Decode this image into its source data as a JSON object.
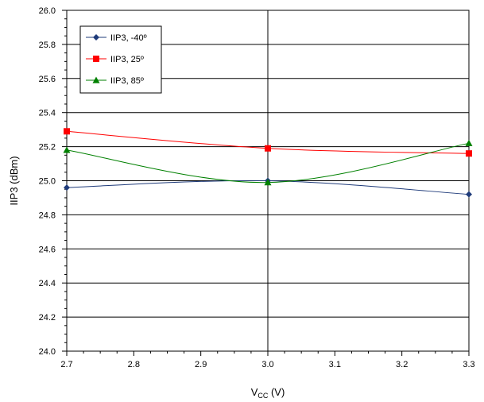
{
  "chart_data": {
    "type": "line",
    "xlabel_main": "V",
    "xlabel_sub": "CC",
    "xlabel_unit": " (V)",
    "ylabel": "IIP3 (dBm)",
    "x": [
      2.7,
      3.0,
      3.3
    ],
    "xlim": [
      2.7,
      3.3
    ],
    "ylim": [
      24.0,
      26.0
    ],
    "x_ticks": [
      "2.7",
      "2.8",
      "2.9",
      "3.0",
      "3.1",
      "3.2",
      "3.3"
    ],
    "y_ticks": [
      "24.0",
      "24.2",
      "24.4",
      "24.6",
      "24.8",
      "25.0",
      "25.2",
      "25.4",
      "25.6",
      "25.8",
      "26.0"
    ],
    "grid": true,
    "smooth": true,
    "legend_position": "top-left",
    "series": [
      {
        "name": "IIP3, -40º",
        "values": [
          24.96,
          25.0,
          24.92
        ],
        "color": "#1f3b7a",
        "marker": "diamond"
      },
      {
        "name": "IIP3, 25º",
        "values": [
          25.29,
          25.19,
          25.16
        ],
        "color": "#ff0000",
        "marker": "square"
      },
      {
        "name": "IIP3, 85º",
        "values": [
          25.18,
          24.99,
          25.22
        ],
        "color": "#008000",
        "marker": "triangle"
      }
    ]
  }
}
